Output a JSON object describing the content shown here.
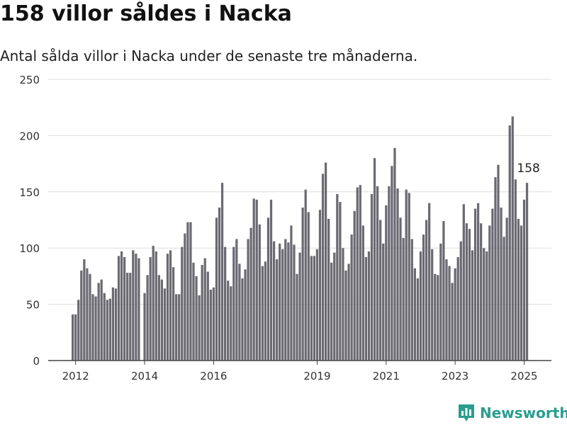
{
  "title": "158 villor såldes i Nacka",
  "subtitle": "Antal sålda villor i Nacka under de senaste tre månaderna.",
  "brand": {
    "name": "Newsworthy",
    "icon": "newsworthy-logo-icon"
  },
  "colors": {
    "bar": "#6b6a72",
    "highlight": "#2a9d8f",
    "grid": "#dddddd",
    "axis": "#444444",
    "text": "#333333"
  },
  "chart_data": {
    "type": "bar",
    "title": "158 villor såldes i Nacka",
    "subtitle": "Antal sålda villor i Nacka under de senaste tre månaderna.",
    "xlabel": "",
    "ylabel": "",
    "ylim": [
      0,
      250
    ],
    "yticks": [
      0,
      50,
      100,
      150,
      200,
      250
    ],
    "xticks": [
      "2012",
      "2014",
      "2016",
      "2019",
      "2021",
      "2023",
      "2025"
    ],
    "xtick_months": [
      "2012-01",
      "2014-01",
      "2016-01",
      "2019-01",
      "2021-01",
      "2023-01",
      "2025-01"
    ],
    "grid": true,
    "start_month": "2011-12",
    "end_month": "2025-03",
    "highlight": {
      "month": "2025-03",
      "value": 158,
      "label": "158"
    },
    "values": [
      41,
      41,
      54,
      80,
      90,
      82,
      77,
      59,
      57,
      69,
      72,
      60,
      54,
      55,
      65,
      64,
      93,
      97,
      92,
      78,
      78,
      98,
      95,
      91,
      null,
      60,
      76,
      92,
      102,
      97,
      76,
      72,
      64,
      95,
      98,
      83,
      59,
      59,
      101,
      113,
      123,
      123,
      87,
      75,
      58,
      85,
      91,
      79,
      63,
      65,
      127,
      136,
      158,
      101,
      71,
      66,
      101,
      108,
      86,
      73,
      81,
      108,
      118,
      144,
      143,
      121,
      84,
      88,
      127,
      143,
      106,
      90,
      104,
      99,
      108,
      105,
      120,
      103,
      77,
      96,
      136,
      152,
      132,
      93,
      93,
      99,
      134,
      166,
      176,
      126,
      87,
      96,
      148,
      141,
      100,
      80,
      86,
      112,
      133,
      154,
      156,
      120,
      92,
      97,
      148,
      180,
      155,
      125,
      104,
      138,
      155,
      173,
      189,
      153,
      127,
      109,
      152,
      149,
      108,
      82,
      73,
      97,
      112,
      125,
      140,
      99,
      77,
      76,
      104,
      124,
      90,
      84,
      69,
      82,
      92,
      106,
      139,
      122,
      117,
      98,
      135,
      140,
      122,
      100,
      97,
      120,
      135,
      163,
      174,
      136,
      110,
      127,
      209,
      217,
      161,
      126,
      120,
      143,
      158
    ]
  }
}
